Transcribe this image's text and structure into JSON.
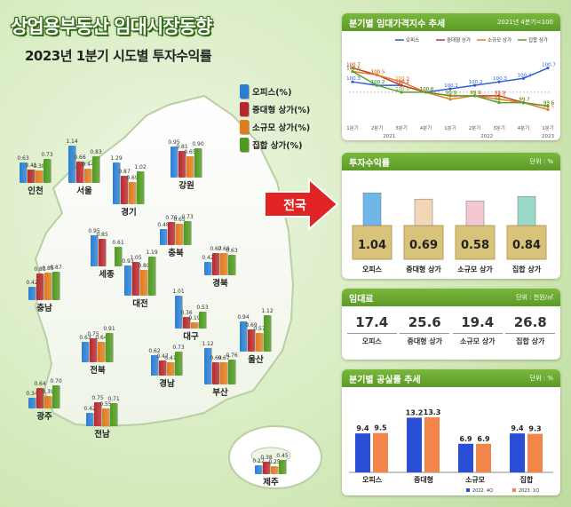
{
  "title": "상업용부동산 임대시장동향",
  "subtitle": "2023년 1분기 시도별 투자수익률",
  "colors": {
    "office": "#2a7fd4",
    "midlarge": "#b8282e",
    "small": "#e07b1e",
    "collective": "#4e9a1c"
  },
  "legend": [
    "오피스(%)",
    "중대형 상가(%)",
    "소규모 상가(%)",
    "집합 상가(%)"
  ],
  "chart_data": [
    {
      "type": "bar",
      "series": [
        "오피스",
        "중대형 상가",
        "소규모 상가",
        "집합 상가"
      ],
      "regions": [
        {
          "name": "인천",
          "values": [
            0.63,
            0.41,
            0.38,
            0.73
          ]
        },
        {
          "name": "서울",
          "values": [
            1.14,
            0.66,
            0.44,
            0.83
          ]
        },
        {
          "name": "강원",
          "values": [
            0.95,
            0.81,
            0.65,
            0.9
          ]
        },
        {
          "name": "경기",
          "values": [
            1.29,
            0.87,
            0.69,
            1.02
          ]
        },
        {
          "name": "충북",
          "values": [
            0.48,
            0.7,
            0.65,
            0.73
          ]
        },
        {
          "name": "세종",
          "values": [
            0.95,
            0.85,
            null,
            0.61
          ]
        },
        {
          "name": "경북",
          "values": [
            0.42,
            0.67,
            0.68,
            0.63
          ]
        },
        {
          "name": "충남",
          "values": [
            0.42,
            0.81,
            0.85,
            0.87
          ]
        },
        {
          "name": "대전",
          "values": [
            0.93,
            1.05,
            0.8,
            1.19
          ]
        },
        {
          "name": "대구",
          "values": [
            1.01,
            0.36,
            0.19,
            0.53
          ]
        },
        {
          "name": "울산",
          "values": [
            0.94,
            0.69,
            0.57,
            1.12
          ]
        },
        {
          "name": "전북",
          "values": [
            0.63,
            0.75,
            0.64,
            0.91
          ]
        },
        {
          "name": "경남",
          "values": [
            0.62,
            0.47,
            0.41,
            0.73
          ]
        },
        {
          "name": "부산",
          "values": [
            1.12,
            0.69,
            0.67,
            0.76
          ]
        },
        {
          "name": "광주",
          "values": [
            0.34,
            0.64,
            0.39,
            0.7
          ]
        },
        {
          "name": "전남",
          "values": [
            0.42,
            0.75,
            0.55,
            0.71
          ]
        },
        {
          "name": "제주",
          "values": [
            0.27,
            0.38,
            0.25,
            0.45
          ]
        }
      ]
    },
    {
      "type": "line",
      "title": "분기별 임대가격지수 추세",
      "note": "2021년 4분기=100",
      "x": [
        "1분기",
        "2분기",
        "3분기",
        "4분기",
        "1분기",
        "2분기",
        "3분기",
        "4분기",
        "1분기"
      ],
      "years": [
        "2021",
        "2022",
        "2023"
      ],
      "ylim": [
        99.0,
        101.2
      ],
      "series": [
        {
          "name": "오피스",
          "values": [
            100.3,
            100.2,
            100.2,
            100.0,
            100.1,
            100.2,
            100.3,
            100.4,
            100.7
          ]
        },
        {
          "name": "중대형 상가",
          "values": [
            100.7,
            100.5,
            100.2,
            100.0,
            99.9,
            99.9,
            99.9,
            99.7,
            99.6
          ]
        },
        {
          "name": "소규모 상가",
          "values": [
            100.6,
            100.5,
            100.3,
            100.0,
            99.8,
            99.9,
            99.8,
            99.7,
            99.5
          ]
        },
        {
          "name": "집합 상가",
          "values": [
            100.6,
            100.2,
            100.0,
            100.0,
            99.9,
            99.9,
            99.7,
            99.7,
            99.6
          ]
        }
      ]
    },
    {
      "type": "bar",
      "title": "투자수익률",
      "unit": "단위 : %",
      "categories": [
        "오피스",
        "중대형 상가",
        "소규모 상가",
        "집합 상가"
      ],
      "values": [
        1.04,
        0.69,
        0.58,
        0.84
      ]
    },
    {
      "type": "table",
      "title": "임대료",
      "unit": "단위 : 천원/㎡",
      "categories": [
        "오피스",
        "중대형 상가",
        "소규모 상가",
        "집합 상가"
      ],
      "values": [
        17.4,
        25.6,
        19.4,
        26.8
      ]
    },
    {
      "type": "bar",
      "title": "분기별 공실률 추세",
      "unit": "단위 : %",
      "categories": [
        "오피스",
        "중대형",
        "소규모",
        "집합"
      ],
      "series": [
        {
          "name": "2022. 4Q",
          "values": [
            9.4,
            13.2,
            6.9,
            9.4
          ]
        },
        {
          "name": "2023. 1Q",
          "values": [
            9.5,
            13.3,
            6.9,
            9.3
          ]
        }
      ],
      "ylim": [
        0,
        15
      ]
    }
  ],
  "nationwide_label": "전국"
}
